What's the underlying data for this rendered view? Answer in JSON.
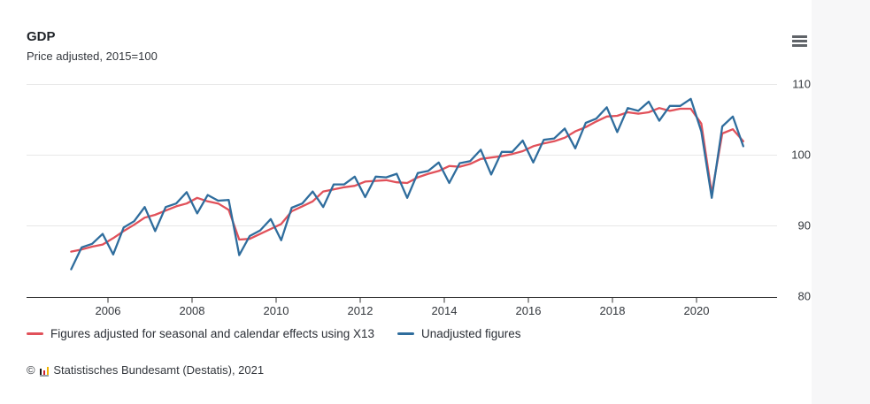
{
  "header": {
    "title": "GDP",
    "subtitle": "Price adjusted, 2015=100"
  },
  "menu": {
    "icon": "hamburger-menu-icon"
  },
  "chart_data": {
    "type": "line",
    "title": "GDP",
    "subtitle": "Price adjusted, 2015=100",
    "x_frequency": "quarterly",
    "x_range": [
      "2005-Q1",
      "2021-Q1"
    ],
    "x_tick_labels": [
      "2006",
      "2008",
      "2010",
      "2012",
      "2014",
      "2016",
      "2018",
      "2020"
    ],
    "y_ticks": [
      80,
      90,
      100,
      110
    ],
    "ylim": [
      80,
      110
    ],
    "grid": "horizontal",
    "legend_position": "bottom",
    "series": [
      {
        "name": "Figures adjusted for seasonal and calendar effects using X13",
        "color": "#e1515a",
        "values": [
          86.3,
          86.6,
          87.0,
          87.3,
          88.2,
          89.2,
          90.1,
          91.1,
          91.5,
          92.1,
          92.7,
          93.1,
          93.9,
          93.4,
          93.1,
          92.2,
          88.0,
          88.1,
          88.8,
          89.5,
          90.2,
          92.0,
          92.7,
          93.4,
          94.8,
          95.1,
          95.4,
          95.6,
          96.2,
          96.3,
          96.4,
          96.1,
          96.0,
          96.8,
          97.3,
          97.7,
          98.4,
          98.3,
          98.7,
          99.4,
          99.6,
          99.8,
          100.1,
          100.5,
          101.2,
          101.6,
          101.9,
          102.4,
          103.3,
          103.9,
          104.7,
          105.4,
          105.5,
          106.0,
          105.8,
          106.0,
          106.6,
          106.2,
          106.5,
          106.5,
          104.4,
          94.5,
          103.0,
          103.6,
          101.9
        ]
      },
      {
        "name": "Unadjusted figures",
        "color": "#2f6d9d",
        "values": [
          83.8,
          86.9,
          87.4,
          88.8,
          85.9,
          89.7,
          90.6,
          92.6,
          89.2,
          92.6,
          93.1,
          94.7,
          91.7,
          94.3,
          93.5,
          93.6,
          85.8,
          88.5,
          89.3,
          90.9,
          87.9,
          92.5,
          93.1,
          94.8,
          92.6,
          95.8,
          95.8,
          96.9,
          94.0,
          96.9,
          96.8,
          97.3,
          93.9,
          97.4,
          97.7,
          98.9,
          96.0,
          98.8,
          99.1,
          100.7,
          97.2,
          100.4,
          100.4,
          102.0,
          98.9,
          102.1,
          102.3,
          103.7,
          100.9,
          104.5,
          105.1,
          106.7,
          103.2,
          106.6,
          106.2,
          107.5,
          104.8,
          106.9,
          106.9,
          107.9,
          103.3,
          93.9,
          104.0,
          105.4,
          101.2
        ]
      }
    ]
  },
  "legend": {
    "items": [
      {
        "label": "Figures adjusted for seasonal and calendar effects using X13",
        "color": "#e1515a"
      },
      {
        "label": "Unadjusted figures",
        "color": "#2f6d9d"
      }
    ]
  },
  "footer": {
    "copyright_symbol": "©",
    "text": "Statistisches Bundesamt (Destatis), 2021"
  },
  "colors": {
    "adjusted_line": "#e1515a",
    "unadjusted_line": "#2f6d9d",
    "gridline": "#e7e7e7",
    "axis": "#333333",
    "text": "#33373d",
    "right_strip_bg": "#f7f7f8"
  }
}
